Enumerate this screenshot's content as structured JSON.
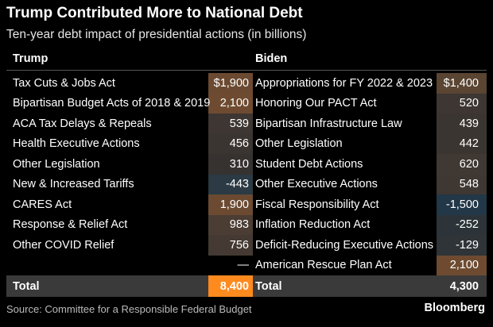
{
  "title": "Trump Contributed More to National Debt",
  "subtitle": "Ten-year debt impact of presidential actions (in billions)",
  "trump": {
    "header": "Trump",
    "rows": [
      {
        "label": "Tax Cuts & Jobs Act",
        "display": "$1,900",
        "value": 1900,
        "color": "#6b4a31"
      },
      {
        "label": "Bipartisan Budget Acts of 2018 & 2019",
        "display": "2,100",
        "value": 2100,
        "color": "#6e4b30"
      },
      {
        "label": "ACA Tax Delays & Repeals",
        "display": "539",
        "value": 539,
        "color": "#3d3632"
      },
      {
        "label": "Health Executive Actions",
        "display": "456",
        "value": 456,
        "color": "#3b3531"
      },
      {
        "label": "Other Legislation",
        "display": "310",
        "value": 310,
        "color": "#363230"
      },
      {
        "label": "New & Increased Tariffs",
        "display": "-443",
        "value": -443,
        "color": "#2b3a44"
      },
      {
        "label": "CARES Act",
        "display": "1,900",
        "value": 1900,
        "color": "#6b4a31"
      },
      {
        "label": "Response & Relief Act",
        "display": "983",
        "value": 983,
        "color": "#4b3d33"
      },
      {
        "label": "Other COVID Relief",
        "display": "756",
        "value": 756,
        "color": "#443a33"
      },
      {
        "label": "",
        "display": "—",
        "value": null,
        "color": "#000000"
      }
    ],
    "total_label": "Total",
    "total_display": "8,400",
    "total_value": 8400
  },
  "biden": {
    "header": "Biden",
    "rows": [
      {
        "label": "Appropriations for FY 2022 & 2023",
        "display": "$1,400",
        "value": 1400,
        "color": "#5a4432"
      },
      {
        "label": "Honoring Our PACT Act",
        "display": "520",
        "value": 520,
        "color": "#3d3632"
      },
      {
        "label": "Bipartisan Infrastructure Law",
        "display": "439",
        "value": 439,
        "color": "#3b3531"
      },
      {
        "label": "Other Legislation",
        "display": "442",
        "value": 442,
        "color": "#3b3531"
      },
      {
        "label": "Student Debt Actions",
        "display": "620",
        "value": 620,
        "color": "#403833"
      },
      {
        "label": "Other Executive Actions",
        "display": "548",
        "value": 548,
        "color": "#3e3732"
      },
      {
        "label": "Fiscal Responsibility Act",
        "display": "-1,500",
        "value": -1500,
        "color": "#223747"
      },
      {
        "label": "Inflation Reduction Act",
        "display": "-252",
        "value": -252,
        "color": "#2c3439"
      },
      {
        "label": "Deficit-Reducing Executive Actions",
        "display": "-129",
        "value": -129,
        "color": "#2e3438"
      },
      {
        "label": "American Rescue Plan Act",
        "display": "2,100",
        "value": 2100,
        "color": "#6e4b30"
      }
    ],
    "total_label": "Total",
    "total_display": "4,300",
    "total_value": 4300
  },
  "source": "Source: Committee for a Responsible Federal Budget",
  "logo": "Bloomberg",
  "colors": {
    "total_highlight": "#ff8a1e",
    "total_row": "#3a3a3a",
    "positive": "#6e4b30",
    "negative": "#223747"
  },
  "chart_data": {
    "type": "table",
    "title": "Trump Contributed More to National Debt",
    "subtitle": "Ten-year debt impact of presidential actions (in billions)",
    "columns": [
      "Trump",
      "Biden"
    ],
    "series": [
      {
        "name": "Trump",
        "categories": [
          "Tax Cuts & Jobs Act",
          "Bipartisan Budget Acts of 2018 & 2019",
          "ACA Tax Delays & Repeals",
          "Health Executive Actions",
          "Other Legislation",
          "New & Increased Tariffs",
          "CARES Act",
          "Response & Relief Act",
          "Other COVID Relief"
        ],
        "values": [
          1900,
          2100,
          539,
          456,
          310,
          -443,
          1900,
          983,
          756
        ],
        "total": 8400
      },
      {
        "name": "Biden",
        "categories": [
          "Appropriations for FY 2022 & 2023",
          "Honoring Our PACT Act",
          "Bipartisan Infrastructure Law",
          "Other Legislation",
          "Student Debt Actions",
          "Other Executive Actions",
          "Fiscal Responsibility Act",
          "Inflation Reduction Act",
          "Deficit-Reducing Executive Actions",
          "American Rescue Plan Act"
        ],
        "values": [
          1400,
          520,
          439,
          442,
          620,
          548,
          -1500,
          -252,
          -129,
          2100
        ],
        "total": 4300
      }
    ]
  }
}
